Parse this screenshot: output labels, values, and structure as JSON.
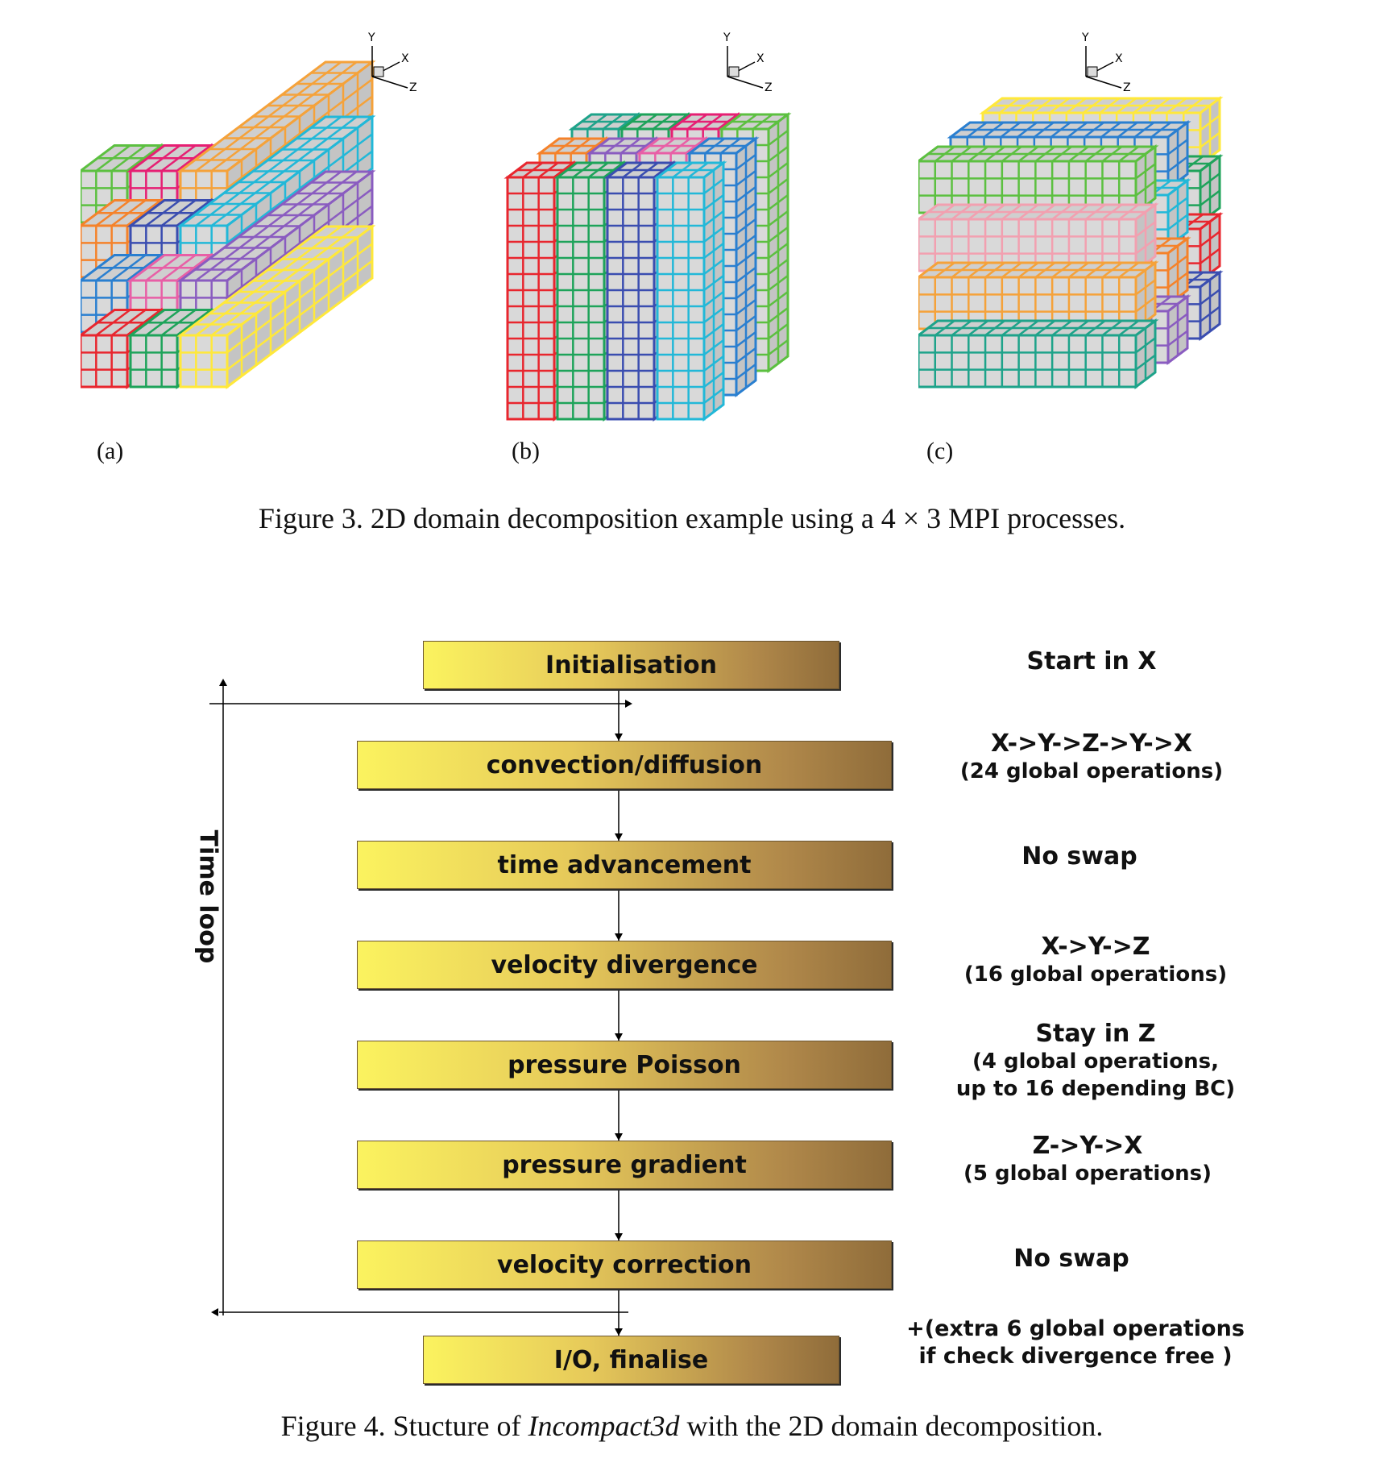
{
  "figure3": {
    "panels": [
      {
        "label": "(a)",
        "axes": {
          "y": "Y",
          "x": "X",
          "z": "Z"
        }
      },
      {
        "label": "(b)",
        "axes": {
          "y": "Y",
          "x": "X",
          "z": "Z"
        }
      },
      {
        "label": "(c)",
        "axes": {
          "y": "Y",
          "x": "X",
          "z": "Z"
        }
      }
    ],
    "caption": "Figure 3. 2D domain decomposition example using a 4 × 3 MPI processes.",
    "colors": [
      "#e8262e",
      "#1ea35a",
      "#ffe83a",
      "#2a7fd0",
      "#e85fa6",
      "#8a5cc0",
      "#f5822a",
      "#3a4db0",
      "#22b8d8",
      "#5cc040",
      "#e61f73",
      "#f5a23a",
      "#f2a0b0",
      "#1ea38a"
    ]
  },
  "figure4": {
    "steps": [
      {
        "label": "Initialisation",
        "note": "Start in X",
        "note2": ""
      },
      {
        "label": "convection/diffusion",
        "note": "X->Y->Z->Y->X",
        "note2": "(24 global operations)"
      },
      {
        "label": "time advancement",
        "note": "No swap",
        "note2": ""
      },
      {
        "label": "velocity divergence",
        "note": "X->Y->Z",
        "note2": "(16 global operations)"
      },
      {
        "label": "pressure Poisson",
        "note": "Stay in Z",
        "note2": "(4 global operations,\nup to 16 depending BC)"
      },
      {
        "label": "pressure gradient",
        "note": "Z->Y->X",
        "note2": "(5 global operations)"
      },
      {
        "label": "velocity correction",
        "note": "No swap",
        "note2": ""
      },
      {
        "label": "I/O, finalise",
        "note": "+(extra 6 global operations",
        "note2": "if check divergence free )"
      }
    ],
    "loop_label": "Time loop",
    "caption_prefix": "Figure 4. Stucture of ",
    "caption_italic": "Incompact3d",
    "caption_suffix": " with the 2D domain decomposition."
  }
}
